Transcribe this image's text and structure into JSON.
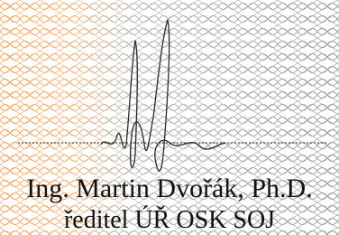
{
  "signature": {
    "name": "Ing. Martin Dvořák, Ph.D.",
    "position": "ředitel ÚŘ OSK SOJ"
  }
}
